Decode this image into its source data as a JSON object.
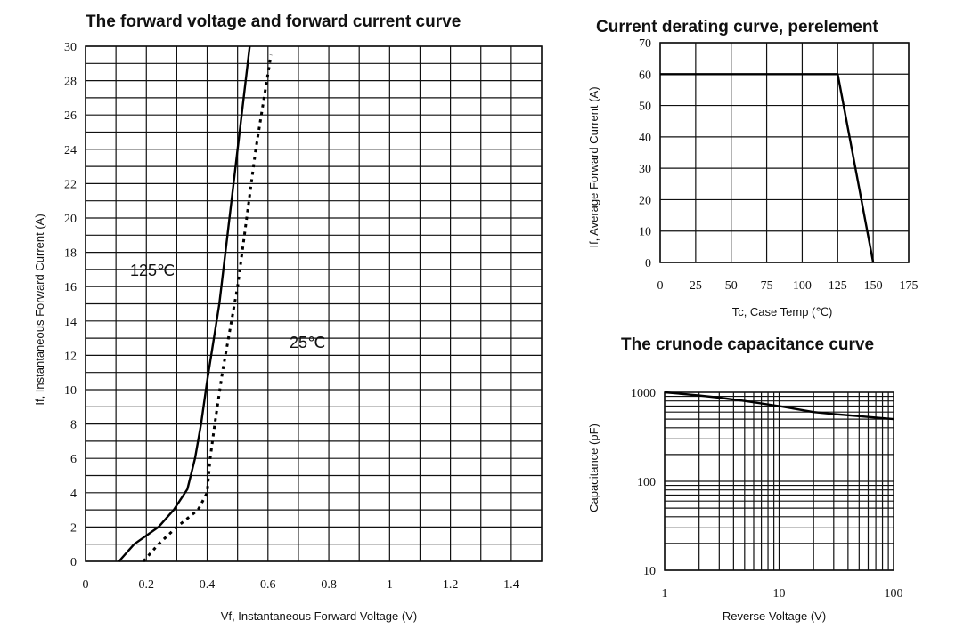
{
  "chart_data": [
    {
      "id": "fwd",
      "type": "line",
      "title": "The forward voltage and forward current curve",
      "xlabel": "Vf, Instantaneous Forward Voltage (V)",
      "ylabel": "If, Instantaneous Forward Current (A)",
      "xlim": [
        0,
        1.5
      ],
      "ylim": [
        0,
        30
      ],
      "xticks": [
        0,
        0.2,
        0.4,
        0.6,
        0.8,
        1.0,
        1.2,
        1.4
      ],
      "xtick_labels": [
        "0",
        "0.2",
        "0.4",
        "0.6",
        "0.8",
        "1",
        "1.2",
        "1.4"
      ],
      "yticks": [
        0,
        2,
        4,
        6,
        8,
        10,
        12,
        14,
        16,
        18,
        20,
        22,
        24,
        26,
        28,
        30
      ],
      "ytick_labels": [
        "0",
        "2",
        "4",
        "6",
        "8",
        "10",
        "12",
        "14",
        "16",
        "18",
        "20",
        "22",
        "24",
        "26",
        "28",
        "30"
      ],
      "grid": true,
      "series": [
        {
          "name": "125℃",
          "style": "solid",
          "x": [
            0.11,
            0.16,
            0.24,
            0.29,
            0.335,
            0.36,
            0.38,
            0.4,
            0.44,
            0.5,
            0.54
          ],
          "y": [
            0.0,
            1.0,
            2.0,
            3.0,
            4.2,
            6.0,
            8.0,
            10.5,
            15.0,
            24.0,
            30.0
          ]
        },
        {
          "name": "25℃",
          "style": "dotted",
          "x": [
            0.19,
            0.24,
            0.3,
            0.37,
            0.4,
            0.41,
            0.425,
            0.45,
            0.5,
            0.56,
            0.61
          ],
          "y": [
            0.0,
            1.0,
            2.0,
            3.0,
            4.0,
            6.0,
            8.0,
            11.0,
            16.0,
            24.0,
            29.5
          ]
        }
      ],
      "annotations": [
        {
          "text": "125℃",
          "x": 0.22,
          "y": 17.0
        },
        {
          "text": "25℃",
          "x": 0.73,
          "y": 12.8
        }
      ]
    },
    {
      "id": "derate",
      "type": "line",
      "title": "Current derating curve, perelement",
      "xlabel": "Tc, Case Temp (℃)",
      "ylabel": "If, Average Forward Current (A)",
      "xlim": [
        0,
        175
      ],
      "ylim": [
        0,
        70
      ],
      "xticks": [
        0,
        25,
        50,
        75,
        100,
        125,
        150,
        175
      ],
      "xtick_labels": [
        "0",
        "25",
        "50",
        "75",
        "100",
        "125",
        "150",
        "175"
      ],
      "yticks": [
        0,
        10,
        20,
        30,
        40,
        50,
        60,
        70
      ],
      "ytick_labels": [
        "0",
        "10",
        "20",
        "30",
        "40",
        "50",
        "60",
        "70"
      ],
      "grid": true,
      "series": [
        {
          "style": "solid",
          "x": [
            0,
            125,
            150
          ],
          "y": [
            60,
            60,
            0
          ]
        }
      ]
    },
    {
      "id": "cap",
      "type": "line",
      "title": "The crunode capacitance curve",
      "xlabel": "Reverse Voltage (V)",
      "ylabel": "Capacitance (pF)",
      "xscale": "log",
      "yscale": "log",
      "xlim": [
        1,
        100
      ],
      "ylim": [
        10,
        1000
      ],
      "xticks": [
        1,
        10,
        100
      ],
      "xtick_labels": [
        "1",
        "10",
        "100"
      ],
      "yticks": [
        10,
        100,
        1000
      ],
      "ytick_labels": [
        "10",
        "100",
        "1000"
      ],
      "grid": true,
      "series": [
        {
          "style": "solid",
          "x": [
            1,
            2,
            3,
            5,
            10,
            20,
            30,
            50,
            100
          ],
          "y": [
            1000,
            920,
            870,
            800,
            700,
            600,
            570,
            540,
            500
          ]
        }
      ]
    }
  ]
}
